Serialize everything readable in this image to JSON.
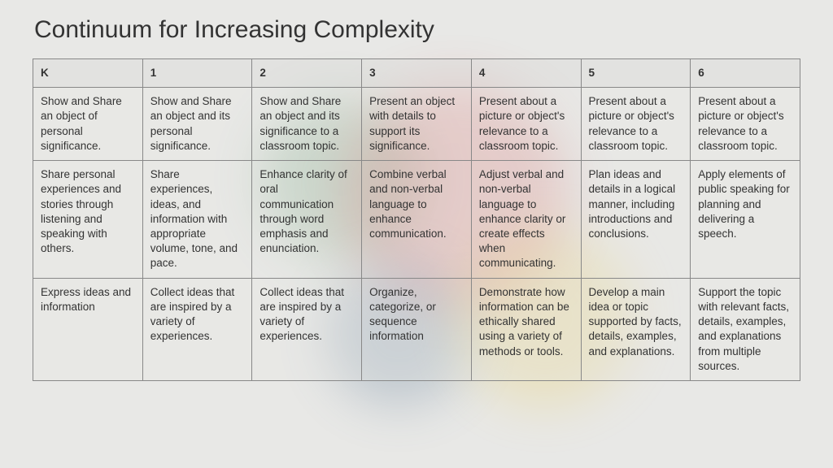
{
  "title": "Continuum for Increasing Complexity",
  "table": {
    "columns": [
      "K",
      "1",
      "2",
      "3",
      "4",
      "5",
      "6"
    ],
    "rows": [
      [
        "Show and Share an object of personal significance.",
        "Show and Share an object and its personal significance.",
        "Show and Share an object and its significance to a classroom topic.",
        "Present an object with details to support its significance.",
        "Present about a picture or object's relevance to a classroom topic.",
        "Present about a picture or object's relevance to a classroom topic.",
        "Present  about a picture or object's relevance to a classroom topic."
      ],
      [
        "Share personal experiences and stories through listening and speaking with others.",
        "Share experiences, ideas, and information with appropriate volume, tone, and pace.",
        "Enhance clarity of oral communication through word emphasis and enunciation.",
        "Combine verbal and non-verbal language to enhance communication.",
        "Adjust verbal and non-verbal language to enhance clarity or create effects when communicating.",
        "Plan ideas and details in a logical manner, including introductions and conclusions.",
        "Apply elements of public speaking for planning and delivering a speech."
      ],
      [
        "Express ideas and information",
        "Collect ideas that are inspired by a variety of experiences.",
        "Collect ideas that are inspired by a variety of experiences.",
        "Organize, categorize, or sequence information",
        "Demonstrate how information can be ethically shared using a variety of methods or tools.",
        "Develop a main idea or topic supported by facts, details, examples, and explanations.",
        "Support the topic with relevant facts, details, examples, and explanations from multiple sources."
      ]
    ],
    "column_count": 7,
    "header_fontsize": 13.5,
    "cell_fontsize": 13.5,
    "border_color": "#888888",
    "text_color": "#333333",
    "background_color": "#e8e8e6"
  }
}
